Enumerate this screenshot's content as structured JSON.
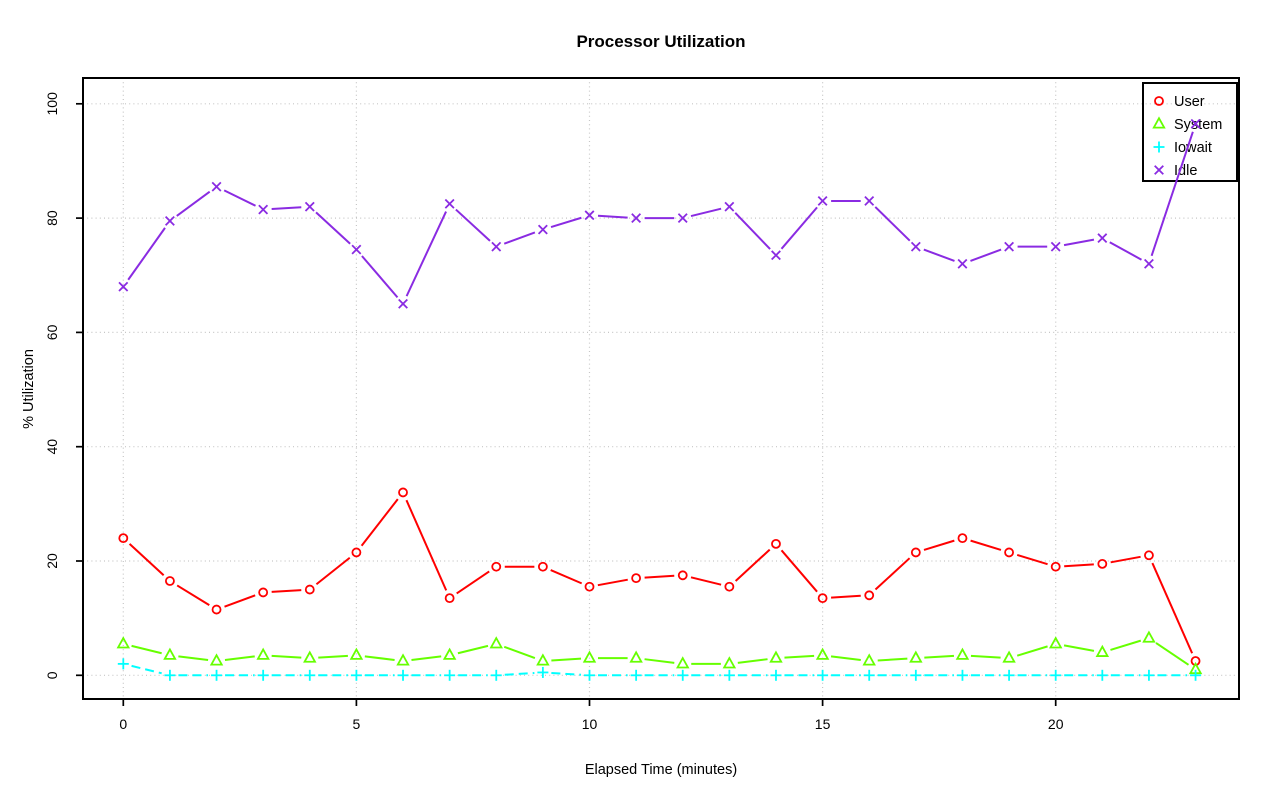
{
  "chart_data": {
    "type": "line",
    "title": "Processor Utilization",
    "xlabel": "Elapsed Time (minutes)",
    "ylabel": "% Utilization",
    "x": [
      0,
      1,
      2,
      3,
      4,
      5,
      6,
      7,
      8,
      9,
      10,
      11,
      12,
      13,
      14,
      15,
      16,
      17,
      18,
      19,
      20,
      21,
      22,
      23
    ],
    "xticks": [
      0,
      5,
      10,
      15,
      20
    ],
    "yticks": [
      0,
      20,
      40,
      60,
      80,
      100
    ],
    "xlim": [
      -1,
      24
    ],
    "ylim": [
      0,
      100
    ],
    "grid": "dotted",
    "legend_position": "top-right",
    "legend_entries": [
      "User",
      "System",
      "Iowait",
      "Idle"
    ],
    "series": [
      {
        "name": "User",
        "color": "#FF0000",
        "marker": "circle",
        "line": "solid",
        "values": [
          24,
          16.5,
          11.5,
          14.5,
          15,
          21.5,
          32,
          13.5,
          19,
          19,
          15.5,
          17,
          17.5,
          15.5,
          23,
          13.5,
          14,
          21.5,
          24,
          21.5,
          19,
          19.5,
          21,
          2.5
        ]
      },
      {
        "name": "System",
        "color": "#66FF00",
        "marker": "triangle",
        "line": "solid",
        "values": [
          5.5,
          3.5,
          2.5,
          3.5,
          3,
          3.5,
          2.5,
          3.5,
          5.5,
          2.5,
          3,
          3,
          2,
          2,
          3,
          3.5,
          2.5,
          3,
          3.5,
          3,
          5.5,
          4,
          6.5,
          1
        ]
      },
      {
        "name": "Iowait",
        "color": "#00FFFF",
        "marker": "plus",
        "line": "dashed",
        "values": [
          2,
          0,
          0,
          0,
          0,
          0,
          0,
          0,
          0,
          0.5,
          0,
          0,
          0,
          0,
          0,
          0,
          0,
          0,
          0,
          0,
          0,
          0,
          0,
          0
        ]
      },
      {
        "name": "Idle",
        "color": "#8A2BE2",
        "marker": "x",
        "line": "solid",
        "values": [
          68,
          79.5,
          85.5,
          81.5,
          82,
          74.5,
          65,
          82.5,
          75,
          78,
          80.5,
          80,
          80,
          82,
          73.5,
          83,
          83,
          75,
          72,
          75,
          75,
          76.5,
          72,
          96.5
        ]
      }
    ],
    "colors": {
      "background": "#FFFFFF",
      "grid": "#C6C6C6",
      "axis": "#000000"
    }
  }
}
